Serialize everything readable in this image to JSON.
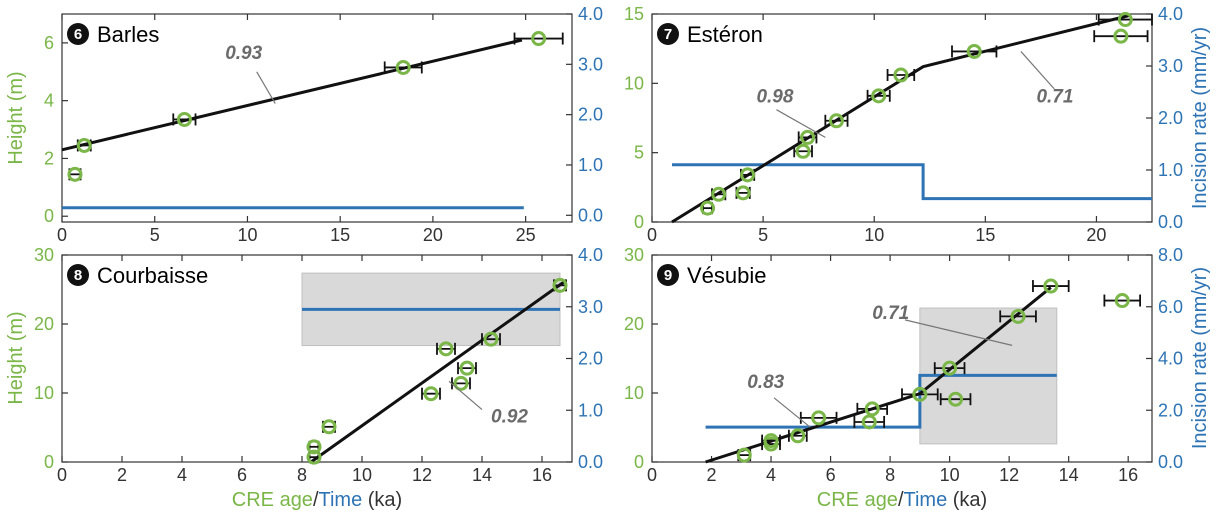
{
  "colors": {
    "height": "#7ab648",
    "rate": "#2e74b5",
    "fit": "#111111",
    "band": "#d9d9d9",
    "errorbar": "#111111",
    "anno": "#6b6b6b"
  },
  "shared_labels": {
    "height_ylabel": "Height (m)",
    "rate_ylabel": "Incision rate (mm/yr)",
    "xlabel_a": "CRE age",
    "xlabel_sep": "/",
    "xlabel_b": "Time",
    "xlabel_unit": " (ka)"
  },
  "chart_data": [
    {
      "type": "scatter",
      "badge": "6",
      "title": "Barles",
      "xlim": [
        0,
        27.5
      ],
      "xticks": [
        0,
        5,
        10,
        15,
        20,
        25
      ],
      "ylim": [
        -0.2,
        7.0
      ],
      "yticks": [
        0,
        2,
        4,
        6
      ],
      "y2lim": [
        -0.1333,
        4.0
      ],
      "y2ticks": [
        "0.0",
        "1.0",
        "2.0",
        "3.0",
        "4.0"
      ],
      "points": [
        {
          "x": 0.7,
          "y": 1.45,
          "xerr": 0.3
        },
        {
          "x": 1.2,
          "y": 2.45,
          "xerr": 0.35
        },
        {
          "x": 6.6,
          "y": 3.35,
          "xerr": 0.6
        },
        {
          "x": 18.4,
          "y": 5.15,
          "xerr": 1.0
        },
        {
          "x": 25.7,
          "y": 6.15,
          "xerr": 1.3
        }
      ],
      "fit": [
        [
          0,
          2.3
        ],
        [
          24.8,
          6.1
        ]
      ],
      "rate_line": [
        [
          0,
          0.15
        ],
        [
          24.9,
          0.15
        ]
      ],
      "band": null,
      "annotations": [
        {
          "text": "0.93",
          "x": 8.8,
          "y": 5.45,
          "leader": [
            [
              10.5,
              5.0
            ],
            [
              11.5,
              3.9
            ]
          ]
        }
      ]
    },
    {
      "type": "scatter",
      "badge": "7",
      "title": "Estéron",
      "xlim": [
        0,
        22.5
      ],
      "xticks": [
        0,
        5,
        10,
        15,
        20
      ],
      "ylim": [
        0,
        15
      ],
      "yticks": [
        0,
        5,
        10,
        15
      ],
      "y2lim": [
        0,
        4.0
      ],
      "y2ticks": [
        "0.0",
        "1.0",
        "2.0",
        "3.0",
        "4.0"
      ],
      "points": [
        {
          "x": 2.5,
          "y": 1.0,
          "xerr": 0.2
        },
        {
          "x": 3.0,
          "y": 2.0,
          "xerr": 0.3
        },
        {
          "x": 4.1,
          "y": 2.1,
          "xerr": 0.3
        },
        {
          "x": 4.3,
          "y": 3.4,
          "xerr": 0.3
        },
        {
          "x": 6.8,
          "y": 5.1,
          "xerr": 0.4
        },
        {
          "x": 7.0,
          "y": 6.1,
          "xerr": 0.4
        },
        {
          "x": 8.3,
          "y": 7.3,
          "xerr": 0.5
        },
        {
          "x": 10.2,
          "y": 9.1,
          "xerr": 0.5
        },
        {
          "x": 11.2,
          "y": 10.6,
          "xerr": 0.6
        },
        {
          "x": 14.5,
          "y": 12.3,
          "xerr": 1.0
        },
        {
          "x": 21.1,
          "y": 13.4,
          "xerr": 1.2
        },
        {
          "x": 21.3,
          "y": 14.6,
          "xerr": 1.2
        }
      ],
      "fit": [
        [
          0.9,
          0
        ],
        [
          12.2,
          11.2
        ],
        [
          21.5,
          14.9
        ]
      ],
      "rate_line": [
        [
          0.9,
          1.1
        ],
        [
          12.2,
          1.1
        ],
        [
          12.2,
          0.45
        ],
        [
          22.5,
          0.45
        ]
      ],
      "band": null,
      "annotations": [
        {
          "text": "0.98",
          "x": 4.7,
          "y": 8.6,
          "leader": [
            [
              5.6,
              8.1
            ],
            [
              7.8,
              6.1
            ]
          ]
        },
        {
          "text": "0.71",
          "x": 17.3,
          "y": 8.6,
          "leader": [
            [
              18.1,
              9.6
            ],
            [
              16.6,
              12.3
            ]
          ]
        }
      ]
    },
    {
      "type": "scatter",
      "badge": "8",
      "title": "Courbaisse",
      "xlim": [
        0,
        17.0
      ],
      "xticks": [
        0,
        2,
        4,
        6,
        8,
        10,
        12,
        14,
        16
      ],
      "ylim": [
        0,
        30
      ],
      "yticks": [
        0,
        10,
        20,
        30
      ],
      "y2lim": [
        0,
        4.0
      ],
      "y2ticks": [
        "0.0",
        "1.0",
        "2.0",
        "3.0",
        "4.0"
      ],
      "points": [
        {
          "x": 8.4,
          "y": 0.7,
          "xerr": 0.15
        },
        {
          "x": 8.4,
          "y": 2.2,
          "xerr": 0.15
        },
        {
          "x": 8.9,
          "y": 5.1,
          "xerr": 0.2
        },
        {
          "x": 12.3,
          "y": 9.9,
          "xerr": 0.3
        },
        {
          "x": 13.3,
          "y": 11.4,
          "xerr": 0.3
        },
        {
          "x": 13.5,
          "y": 13.6,
          "xerr": 0.3
        },
        {
          "x": 12.8,
          "y": 16.4,
          "xerr": 0.3
        },
        {
          "x": 14.3,
          "y": 17.8,
          "xerr": 0.3
        },
        {
          "x": 16.6,
          "y": 25.6,
          "xerr": 0.2
        }
      ],
      "fit": [
        [
          8.3,
          0
        ],
        [
          16.8,
          26.3
        ]
      ],
      "rate_line": [
        [
          8.0,
          2.95
        ],
        [
          16.6,
          2.95
        ]
      ],
      "band": {
        "x": [
          8.0,
          16.6
        ],
        "y2": [
          2.25,
          3.65
        ]
      },
      "annotations": [
        {
          "text": "0.92",
          "x": 14.3,
          "y": 5.7,
          "leader": [
            [
              14.0,
              7.6
            ],
            [
              12.9,
              11.7
            ]
          ]
        }
      ]
    },
    {
      "type": "scatter",
      "badge": "9",
      "title": "Vésubie",
      "xlim": [
        0,
        16.8
      ],
      "xticks": [
        0,
        2,
        4,
        6,
        8,
        10,
        12,
        14,
        16
      ],
      "ylim": [
        0,
        30
      ],
      "yticks": [
        0,
        10,
        20,
        30
      ],
      "y2lim": [
        0,
        8.0
      ],
      "y2ticks": [
        "0.0",
        "2.0",
        "4.0",
        "6.0",
        "8.0"
      ],
      "points": [
        {
          "x": 3.1,
          "y": 1.0,
          "xerr": 0.2
        },
        {
          "x": 4.0,
          "y": 2.6,
          "xerr": 0.3
        },
        {
          "x": 4.0,
          "y": 3.1,
          "xerr": 0.3
        },
        {
          "x": 4.9,
          "y": 3.8,
          "xerr": 0.3
        },
        {
          "x": 5.6,
          "y": 6.4,
          "xerr": 0.6
        },
        {
          "x": 7.3,
          "y": 5.8,
          "xerr": 0.5
        },
        {
          "x": 7.4,
          "y": 7.7,
          "xerr": 0.5
        },
        {
          "x": 9.0,
          "y": 9.8,
          "xerr": 0.6
        },
        {
          "x": 10.2,
          "y": 9.1,
          "xerr": 0.5
        },
        {
          "x": 10.0,
          "y": 13.6,
          "xerr": 0.5
        },
        {
          "x": 12.3,
          "y": 21.1,
          "xerr": 0.6
        },
        {
          "x": 13.4,
          "y": 25.5,
          "xerr": 0.6
        },
        {
          "x": 15.8,
          "y": 23.4,
          "xerr": 0.6
        }
      ],
      "fit": [
        [
          1.8,
          0
        ],
        [
          9.0,
          9.9
        ],
        [
          13.4,
          25.3
        ]
      ],
      "rate_line": [
        [
          1.8,
          1.35
        ],
        [
          9.0,
          1.35
        ],
        [
          9.0,
          3.35
        ],
        [
          13.6,
          3.35
        ]
      ],
      "band": {
        "x": [
          9.0,
          13.6
        ],
        "y2": [
          0.7,
          5.95
        ]
      },
      "annotations": [
        {
          "text": "0.83",
          "x": 3.2,
          "y": 10.7,
          "leader": [
            [
              4.1,
              9.3
            ],
            [
              5.3,
              5.1
            ]
          ]
        },
        {
          "text": "0.71",
          "x": 7.4,
          "y": 20.7,
          "leader": [
            [
              8.5,
              20.6
            ],
            [
              12.1,
              16.9
            ]
          ]
        }
      ]
    }
  ]
}
